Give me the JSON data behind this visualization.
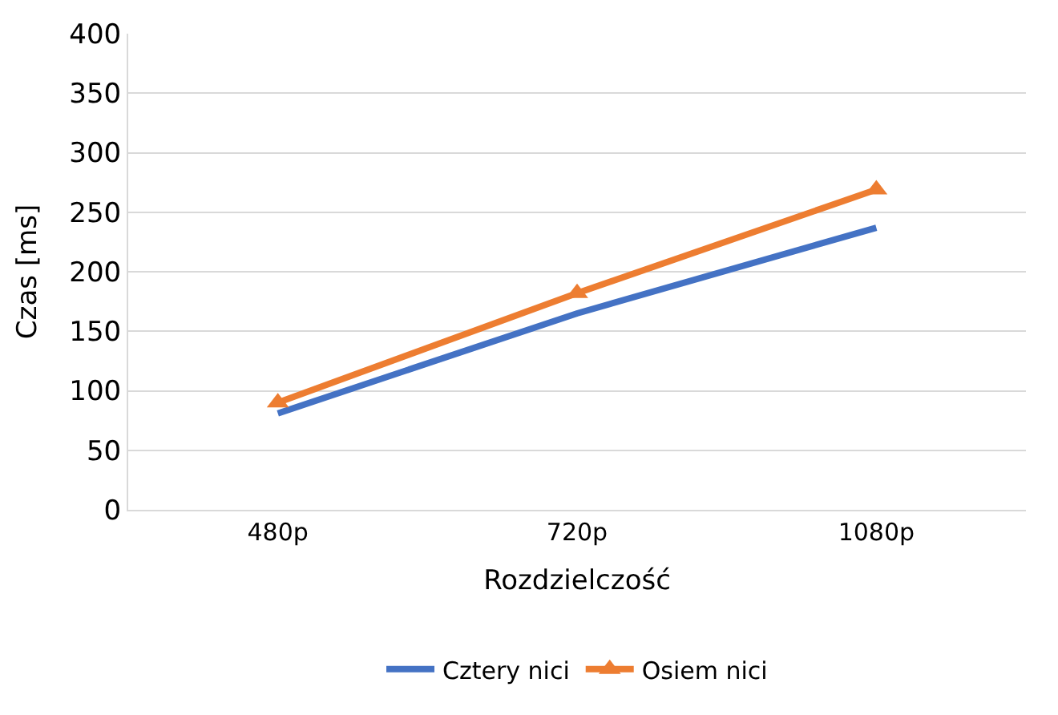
{
  "chart_data": {
    "type": "line",
    "xlabel": "Rozdzielczość",
    "ylabel": "Czas [ms]",
    "categories": [
      "480p",
      "720p",
      "1080p"
    ],
    "series": [
      {
        "name": "Cztery nici",
        "color": "#4472c4",
        "values": [
          81,
          165,
          237
        ],
        "marker": "none"
      },
      {
        "name": "Osiem nici",
        "color": "#ed7d31",
        "values": [
          90,
          182,
          269
        ],
        "marker": "triangle"
      }
    ],
    "ylim": [
      0,
      400
    ],
    "yticks": [
      0,
      50,
      100,
      150,
      200,
      250,
      300,
      350,
      400
    ],
    "grid": "y",
    "legend": "bottom",
    "line_style": "solid"
  }
}
